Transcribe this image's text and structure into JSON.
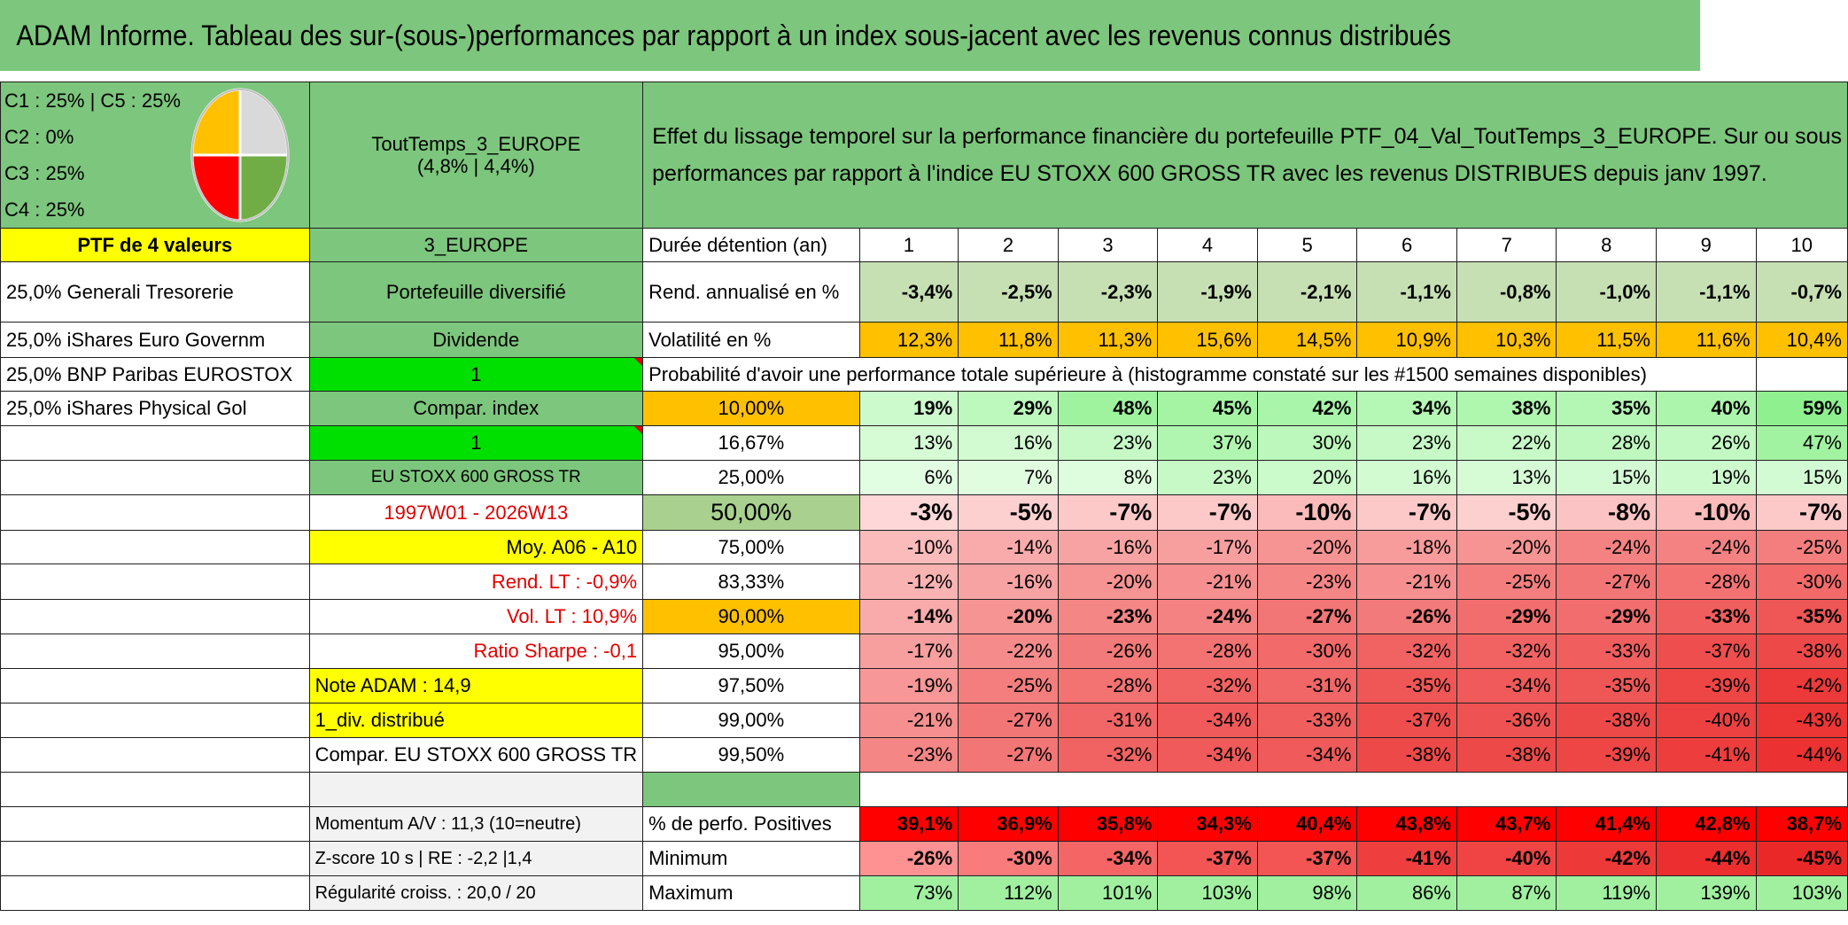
{
  "banner": "ADAM Informe. Tableau des sur-(sous-)performances par rapport à un index sous-jacent avec les revenus connus distribués",
  "allocation": [
    "C1 : 25% | C5 : 25%",
    "C2 : 0%",
    "C3 : 25%",
    "C4 : 25%"
  ],
  "pie": {
    "values": [
      25,
      25,
      25,
      25
    ],
    "colors": [
      "#d9d9d9",
      "#70ad47",
      "#ff0000",
      "#ffc000"
    ]
  },
  "portfolio": {
    "name": "ToutTemps_3_EUROPE",
    "stats": "(4,8% | 4,4%)"
  },
  "description": "Effet du lissage temporel sur la performance financière du portefeuille PTF_04_Val_ToutTemps_3_EUROPE. Sur ou sous performances par rapport à l'indice EU STOXX 600 GROSS TR avec les revenus DISTRIBUES depuis janv 1997.",
  "left": {
    "header": "PTF de 4 valeurs",
    "holdings": [
      "25,0% Generali Tresorerie",
      "25,0% iShares Euro Governm",
      "25,0% BNP Paribas EUROSTOX",
      "25,0% iShares Physical Gol"
    ]
  },
  "mid": {
    "region": "3_EUROPE",
    "type": "Portefeuille diversifié",
    "dividende_label": "Dividende",
    "dividende_value": "1",
    "compar_label": "Compar. index",
    "compar_value": "1",
    "index_name": "EU STOXX 600 GROSS TR",
    "period": "1997W01 - 2026W13",
    "moy": "Moy. A06 - A10",
    "rend_lt": "Rend. LT : -0,9%",
    "vol_lt": "Vol. LT : 10,9%",
    "sharpe": "Ratio Sharpe : -0,1",
    "note": "Note ADAM : 14,9",
    "div_distrib": "1_div. distribué",
    "compar_full": "Compar. EU STOXX 600 GROSS TR",
    "momentum": "Momentum A/V : 11,3 (10=neutre)",
    "zscore": "Z-score 10 s | RE : -2,2 |1,4",
    "regularite": "Régularité croiss. : 20,0 / 20"
  },
  "table": {
    "duree_label": "Durée détention (an)",
    "years": [
      "1",
      "2",
      "3",
      "4",
      "5",
      "6",
      "7",
      "8",
      "9",
      "10"
    ],
    "rend_label": "Rend. annualisé en %",
    "rend": [
      "-3,4%",
      "-2,5%",
      "-2,3%",
      "-1,9%",
      "-2,1%",
      "-1,1%",
      "-0,8%",
      "-1,0%",
      "-1,1%",
      "-0,7%"
    ],
    "vol_label": "Volatilité en %",
    "vol": [
      "12,3%",
      "11,8%",
      "11,3%",
      "15,6%",
      "14,5%",
      "10,9%",
      "10,3%",
      "11,5%",
      "11,6%",
      "10,4%"
    ],
    "prob_title": "Probabilité d'avoir une performance totale supérieure à (histogramme constaté sur les #1500 semaines disponibles)",
    "prob_rows": [
      {
        "label": "10,00%",
        "values": [
          "19%",
          "29%",
          "48%",
          "45%",
          "42%",
          "34%",
          "38%",
          "35%",
          "40%",
          "59%"
        ]
      },
      {
        "label": "16,67%",
        "values": [
          "13%",
          "16%",
          "23%",
          "37%",
          "30%",
          "23%",
          "22%",
          "28%",
          "26%",
          "47%"
        ]
      },
      {
        "label": "25,00%",
        "values": [
          "6%",
          "7%",
          "8%",
          "23%",
          "20%",
          "16%",
          "13%",
          "15%",
          "19%",
          "15%"
        ]
      },
      {
        "label": "50,00%",
        "values": [
          "-3%",
          "-5%",
          "-7%",
          "-7%",
          "-10%",
          "-7%",
          "-5%",
          "-8%",
          "-10%",
          "-7%"
        ]
      },
      {
        "label": "75,00%",
        "values": [
          "-10%",
          "-14%",
          "-16%",
          "-17%",
          "-20%",
          "-18%",
          "-20%",
          "-24%",
          "-24%",
          "-25%"
        ]
      },
      {
        "label": "83,33%",
        "values": [
          "-12%",
          "-16%",
          "-20%",
          "-21%",
          "-23%",
          "-21%",
          "-25%",
          "-27%",
          "-28%",
          "-30%"
        ]
      },
      {
        "label": "90,00%",
        "values": [
          "-14%",
          "-20%",
          "-23%",
          "-24%",
          "-27%",
          "-26%",
          "-29%",
          "-29%",
          "-33%",
          "-35%"
        ]
      },
      {
        "label": "95,00%",
        "values": [
          "-17%",
          "-22%",
          "-26%",
          "-28%",
          "-30%",
          "-32%",
          "-32%",
          "-33%",
          "-37%",
          "-38%"
        ]
      },
      {
        "label": "97,50%",
        "values": [
          "-19%",
          "-25%",
          "-28%",
          "-32%",
          "-31%",
          "-35%",
          "-34%",
          "-35%",
          "-39%",
          "-42%"
        ]
      },
      {
        "label": "99,00%",
        "values": [
          "-21%",
          "-27%",
          "-31%",
          "-34%",
          "-33%",
          "-37%",
          "-36%",
          "-38%",
          "-40%",
          "-43%"
        ]
      },
      {
        "label": "99,50%",
        "values": [
          "-23%",
          "-27%",
          "-32%",
          "-34%",
          "-34%",
          "-38%",
          "-38%",
          "-39%",
          "-41%",
          "-44%"
        ]
      }
    ],
    "pos_label": "% de perfo. Positives",
    "pos": [
      "39,1%",
      "36,9%",
      "35,8%",
      "34,3%",
      "40,4%",
      "43,8%",
      "43,7%",
      "41,4%",
      "42,8%",
      "38,7%"
    ],
    "min_label": "Minimum",
    "min": [
      "-26%",
      "-30%",
      "-34%",
      "-37%",
      "-37%",
      "-41%",
      "-40%",
      "-42%",
      "-44%",
      "-45%"
    ],
    "max_label": "Maximum",
    "max": [
      "73%",
      "112%",
      "101%",
      "103%",
      "98%",
      "86%",
      "87%",
      "119%",
      "139%",
      "103%"
    ]
  }
}
